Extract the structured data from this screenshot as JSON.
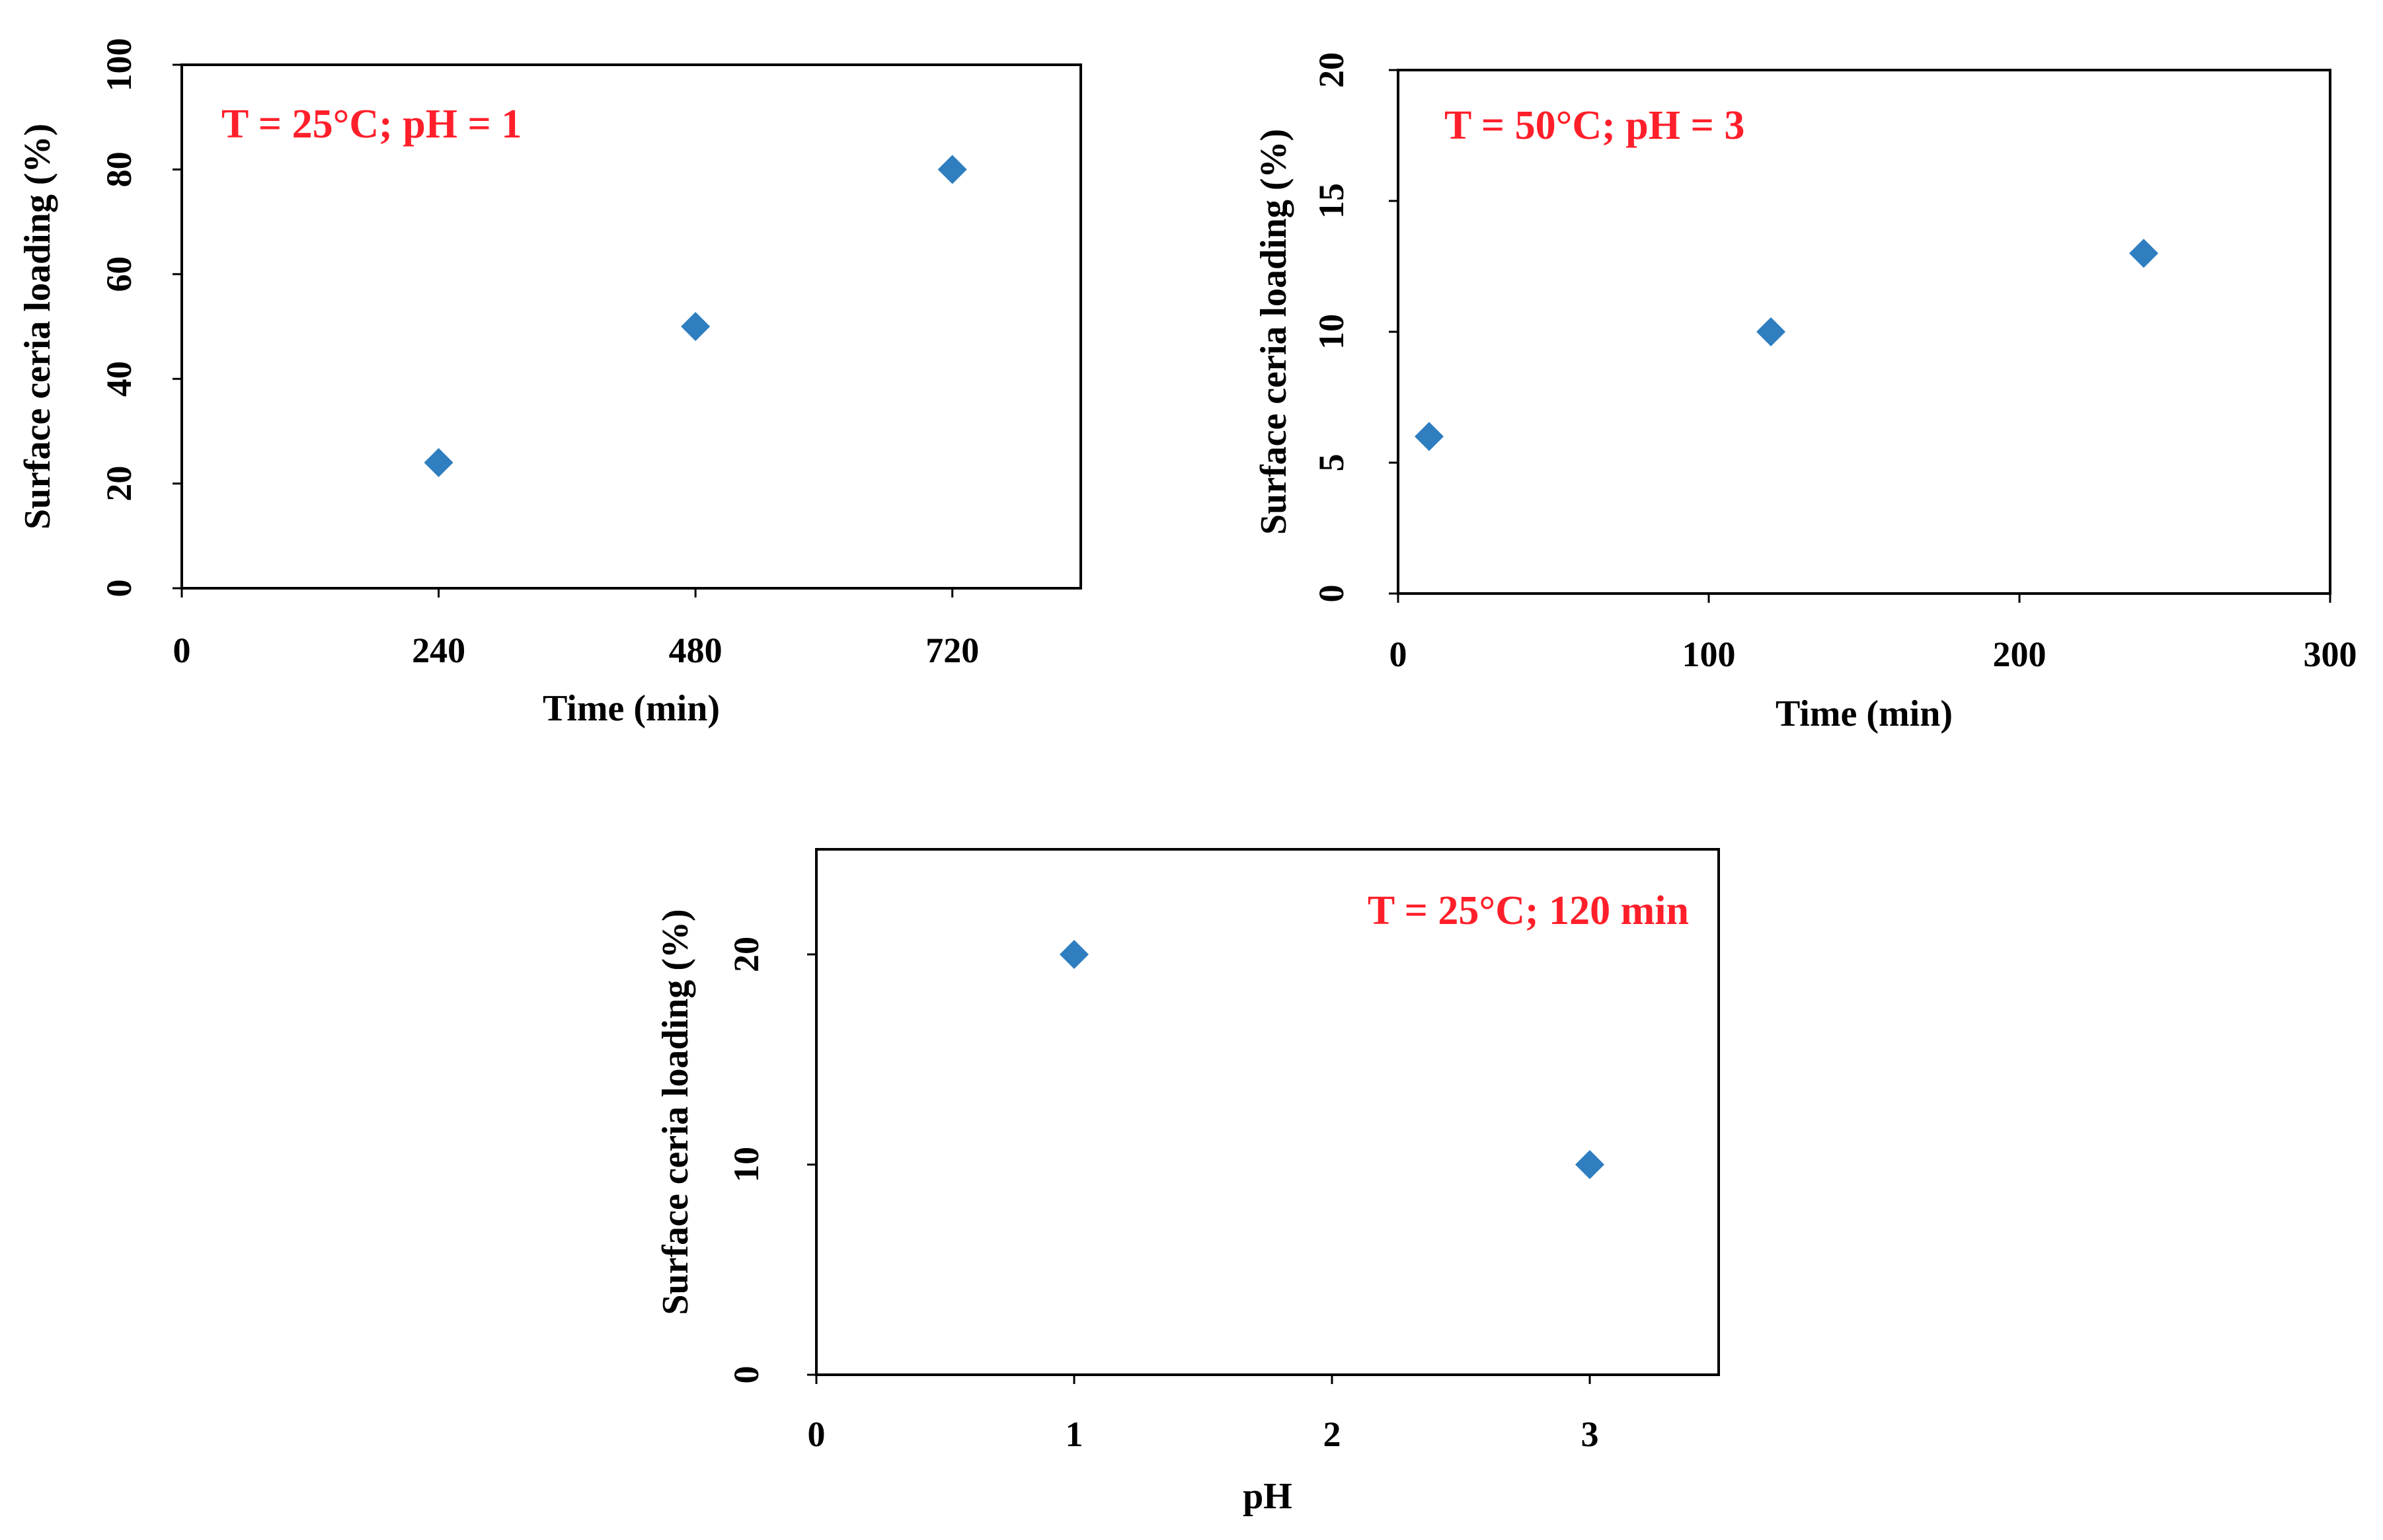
{
  "marker_color": "#2E7EC0",
  "annotation_color": "#FF1F2A",
  "chart_data": [
    {
      "type": "scatter",
      "annotation": "T = 25°C; pH = 1",
      "xlabel": "Time (min)",
      "ylabel": "Surface ceria loading (%)",
      "xlim": [
        0,
        840
      ],
      "ylim": [
        0,
        100
      ],
      "xticks": [
        0,
        240,
        480,
        720
      ],
      "yticks": [
        0,
        20,
        40,
        60,
        80,
        100
      ],
      "series": [
        {
          "name": "",
          "x": [
            240,
            480,
            720
          ],
          "y": [
            24,
            50,
            80
          ]
        }
      ]
    },
    {
      "type": "scatter",
      "annotation": "T = 50°C; pH = 3",
      "xlabel": "Time (min)",
      "ylabel": "Surface ceria loading (%)",
      "xlim": [
        0,
        300
      ],
      "ylim": [
        0,
        20
      ],
      "xticks": [
        0,
        100,
        200,
        300
      ],
      "yticks": [
        0,
        5,
        10,
        15,
        20
      ],
      "series": [
        {
          "name": "",
          "x": [
            10,
            120,
            240
          ],
          "y": [
            6,
            10,
            13
          ]
        }
      ]
    },
    {
      "type": "scatter",
      "annotation": "T = 25°C; 120 min",
      "xlabel": "pH",
      "ylabel": "Surface ceria loading (%)",
      "xlim": [
        0,
        3.5
      ],
      "ylim": [
        0,
        25
      ],
      "xticks": [
        0,
        1,
        2,
        3
      ],
      "yticks": [
        0,
        10,
        20
      ],
      "series": [
        {
          "name": "",
          "x": [
            1,
            3
          ],
          "y": [
            20,
            10
          ]
        }
      ]
    }
  ]
}
